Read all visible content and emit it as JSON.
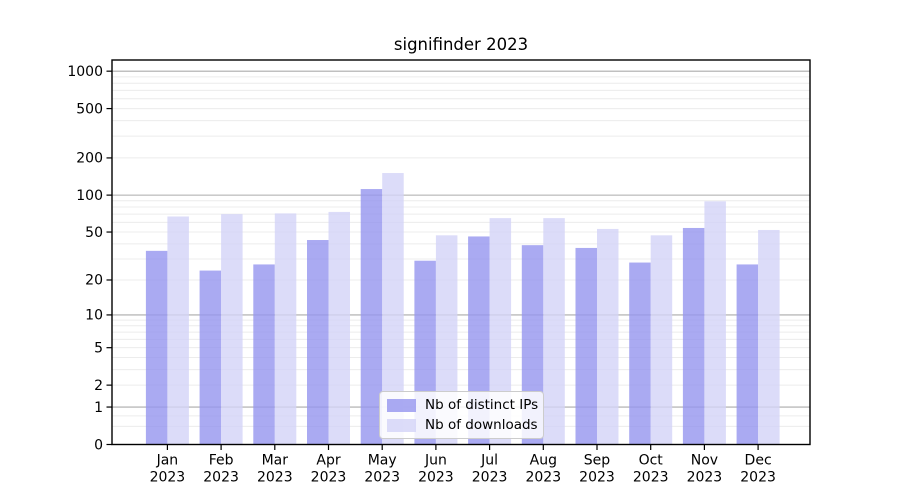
{
  "chart_data": {
    "type": "bar",
    "title": "signifinder 2023",
    "year_label": "2023",
    "categories": [
      "Jan",
      "Feb",
      "Mar",
      "Apr",
      "May",
      "Jun",
      "Jul",
      "Aug",
      "Sep",
      "Oct",
      "Nov",
      "Dec"
    ],
    "series": [
      {
        "name": "Nb of distinct IPs",
        "color": "#9595ef",
        "values": [
          35,
          24,
          27,
          43,
          112,
          29,
          46,
          39,
          37,
          28,
          54,
          27
        ]
      },
      {
        "name": "Nb of downloads",
        "color": "#d3d3f7",
        "values": [
          67,
          70,
          71,
          73,
          151,
          47,
          65,
          65,
          53,
          47,
          89,
          52
        ]
      }
    ],
    "xlabel": "",
    "ylabel": "",
    "yscale": "log1p",
    "yticks": [
      0,
      1,
      2,
      5,
      10,
      20,
      50,
      100,
      200,
      500,
      1000
    ],
    "ylim": [
      0,
      1230
    ],
    "grid": {
      "enabled": true,
      "major_values": [
        1,
        10,
        100,
        1000
      ],
      "major_color": "#ababab",
      "minor_color": "#ececec"
    },
    "legend": {
      "position": "lower center"
    },
    "colors": {
      "axis": "#000000",
      "background": "#ffffff",
      "bar_opacity": 0.8
    }
  }
}
